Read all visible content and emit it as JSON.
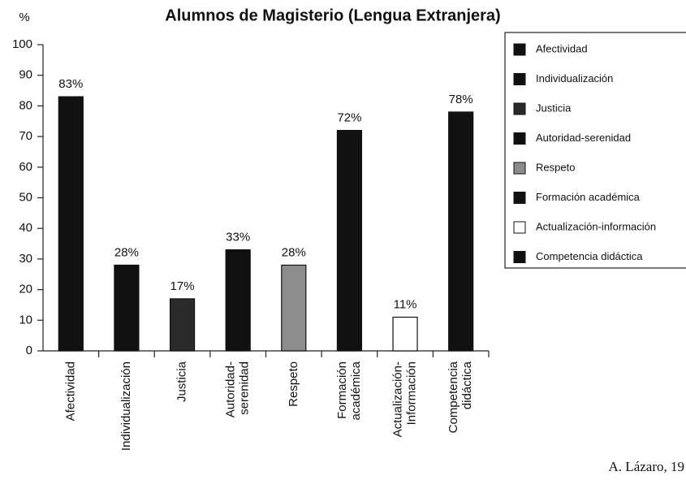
{
  "chart_data": {
    "type": "bar",
    "title": "Alumnos de Magisterio (Lengua Extranjera)",
    "y_label": "%",
    "categories": [
      [
        "Afectividad"
      ],
      [
        "Individualización"
      ],
      [
        "Justicia"
      ],
      [
        "Autoridad-",
        "serenidad"
      ],
      [
        "Respeto"
      ],
      [
        "Formación",
        "académica"
      ],
      [
        "Actualización-",
        "Información"
      ],
      [
        "Competencia",
        "didáctica"
      ]
    ],
    "values": [
      83,
      28,
      17,
      33,
      28,
      72,
      11,
      78
    ],
    "value_labels": [
      "83%",
      "28%",
      "17%",
      "33%",
      "28%",
      "72%",
      "11%",
      "78%"
    ],
    "colors": [
      "#111111",
      "#111111",
      "#2a2a2a",
      "#111111",
      "#8c8c8c",
      "#111111",
      "#ffffff",
      "#111111"
    ],
    "legend": [
      "Afectividad",
      "Individualización",
      "Justicia",
      "Autoridad-serenidad",
      "Respeto",
      "Formación académica",
      "Actualización-información",
      "Competencia didáctica"
    ],
    "ylim": [
      0,
      100
    ],
    "yticks": [
      0,
      10,
      20,
      30,
      40,
      50,
      60,
      70,
      80,
      90,
      100
    ],
    "source": "A. Lázaro, 19"
  }
}
